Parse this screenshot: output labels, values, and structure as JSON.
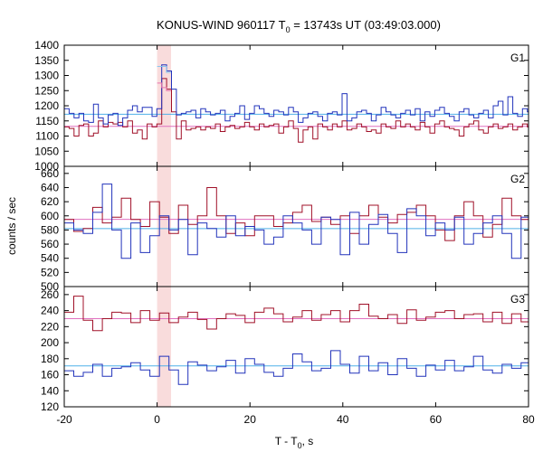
{
  "chart_data": {
    "type": "line",
    "title": {
      "pre": "KONUS-WIND 960117 T",
      "sub": "0",
      "post": " = 13743s UT (03:49:03.000)"
    },
    "xlabel": {
      "pre": "T - T",
      "sub": "0",
      "post": ", s"
    },
    "ylabel": "counts / sec",
    "xlim": [
      -20,
      80
    ],
    "x_ticks": [
      -20,
      0,
      20,
      40,
      60,
      80
    ],
    "x_tick_labels": [
      "-20",
      "0",
      "20",
      "40",
      "60",
      "80"
    ],
    "highlight_interval": [
      0,
      3
    ],
    "colors": {
      "band": "#f9dcdc",
      "lc_blue": "#2233bb",
      "lc_red": "#a01028",
      "bg_blue": "#4fb0e8",
      "bg_red": "#e070c0",
      "blue_hi": "#88c8f0",
      "red_hi": "#e878b0"
    },
    "panels": [
      {
        "name": "G1",
        "ylim": [
          1000,
          1400
        ],
        "yticks": [
          1000,
          1050,
          1100,
          1150,
          1200,
          1250,
          1300,
          1350,
          1400
        ],
        "ytick_labels": [
          "1000",
          "1050",
          "1100",
          "1150",
          "1200",
          "1250",
          "1300",
          "1350",
          "1400"
        ],
        "bin_width": 1.05,
        "red_start": -20,
        "blue_start": -20,
        "red_values": [
          1130,
          1125,
          1100,
          1135,
          1140,
          1100,
          1110,
          1150,
          1130,
          1145,
          1140,
          1145,
          1130,
          1150,
          1110,
          1120,
          1090,
          1140,
          1130,
          1140,
          1290,
          1255,
          1180,
          1090,
          1150,
          1120,
          1125,
          1130,
          1120,
          1130,
          1125,
          1140,
          1115,
          1130,
          1135,
          1125,
          1130,
          1145,
          1130,
          1120,
          1140,
          1130,
          1135,
          1140,
          1110,
          1130,
          1150,
          1125,
          1080,
          1120,
          1130,
          1090,
          1140,
          1130,
          1120,
          1140,
          1130,
          1150,
          1120,
          1125,
          1140,
          1130,
          1115,
          1120,
          1110,
          1140,
          1130,
          1125,
          1150,
          1130,
          1140,
          1130,
          1120,
          1145,
          1130,
          1110,
          1140,
          1150,
          1130,
          1125,
          1120,
          1100,
          1130,
          1140,
          1150,
          1120,
          1110,
          1130,
          1140,
          1125,
          1130,
          1140,
          1120,
          1130,
          1140,
          1130
        ],
        "blue_values": [
          1190,
          1175,
          1160,
          1175,
          1150,
          1145,
          1205,
          1160,
          1140,
          1170,
          1175,
          1135,
          1160,
          1185,
          1200,
          1180,
          1195,
          1195,
          1165,
          1190,
          1335,
          1315,
          1255,
          1170,
          1175,
          1180,
          1185,
          1160,
          1190,
          1180,
          1170,
          1175,
          1185,
          1150,
          1165,
          1175,
          1200,
          1155,
          1175,
          1200,
          1190,
          1175,
          1165,
          1185,
          1180,
          1170,
          1195,
          1180,
          1145,
          1160,
          1175,
          1180,
          1165,
          1150,
          1175,
          1180,
          1170,
          1240,
          1150,
          1160,
          1180,
          1185,
          1175,
          1150,
          1170,
          1195,
          1180,
          1170,
          1160,
          1175,
          1185,
          1170,
          1190,
          1150,
          1180,
          1165,
          1185,
          1195,
          1175,
          1165,
          1150,
          1180,
          1190,
          1170,
          1160,
          1175,
          1185,
          1160,
          1200,
          1215,
          1170,
          1230,
          1175,
          1165,
          1190,
          1180
        ],
        "bg_red": 1132,
        "bg_blue": 1172,
        "highlight_red": [
          1275,
          1260,
          1250
        ],
        "highlight_blue": [
          1330,
          1330,
          1310
        ]
      },
      {
        "name": "G2",
        "ylim": [
          500,
          670
        ],
        "yticks": [
          500,
          520,
          540,
          560,
          580,
          600,
          620,
          640,
          660
        ],
        "ytick_labels": [
          "500",
          "520",
          "540",
          "560",
          "580",
          "600",
          "620",
          "640",
          "660"
        ],
        "bin_width": 2.05,
        "red_start": -20,
        "blue_start": -20,
        "red_values": [
          595,
          578,
          582,
          612,
          590,
          598,
          625,
          595,
          585,
          620,
          598,
          575,
          615,
          588,
          600,
          640,
          600,
          575,
          590,
          572,
          600,
          600,
          585,
          590,
          605,
          615,
          592,
          598,
          588,
          600,
          575,
          600,
          615,
          598,
          590,
          602,
          605,
          615,
          600,
          580,
          565,
          600,
          620,
          600,
          570,
          588,
          625,
          600,
          595,
          615,
          600,
          595,
          610,
          590,
          615,
          600,
          570,
          590,
          610,
          600
        ],
        "blue_values": [
          590,
          580,
          575,
          605,
          645,
          580,
          540,
          590,
          548,
          572,
          600,
          580,
          595,
          545,
          590,
          582,
          570,
          600,
          572,
          585,
          580,
          560,
          570,
          600,
          590,
          580,
          560,
          598,
          595,
          545,
          605,
          560,
          588,
          602,
          575,
          548,
          610,
          600,
          572,
          590,
          580,
          598,
          560,
          575,
          590,
          600,
          575,
          540,
          598,
          580,
          600,
          585,
          560,
          572,
          598,
          580,
          590,
          575,
          600,
          580
        ],
        "bg_red": 595,
        "bg_blue": 582
      },
      {
        "name": "G3",
        "ylim": [
          120,
          270
        ],
        "yticks": [
          120,
          140,
          160,
          180,
          200,
          220,
          240,
          260
        ],
        "ytick_labels": [
          "120",
          "140",
          "160",
          "180",
          "200",
          "220",
          "240",
          "260"
        ],
        "bin_width": 2.05,
        "red_start": -20,
        "blue_start": -20,
        "red_values": [
          238,
          258,
          228,
          215,
          230,
          238,
          237,
          225,
          240,
          228,
          237,
          225,
          232,
          238,
          229,
          217,
          230,
          236,
          234,
          225,
          238,
          243,
          236,
          226,
          232,
          240,
          228,
          235,
          240,
          226,
          240,
          248,
          233,
          230,
          235,
          224,
          241,
          228,
          232,
          238,
          240,
          230,
          235,
          236,
          226,
          238,
          224,
          236,
          226,
          238,
          243,
          235,
          240,
          227,
          246,
          236,
          240,
          232,
          225,
          237
        ],
        "blue_values": [
          165,
          158,
          163,
          173,
          158,
          168,
          170,
          175,
          166,
          158,
          183,
          166,
          148,
          176,
          172,
          165,
          170,
          178,
          162,
          180,
          173,
          163,
          158,
          168,
          186,
          176,
          165,
          168,
          190,
          173,
          162,
          183,
          165,
          175,
          160,
          180,
          168,
          158,
          172,
          166,
          178,
          165,
          170,
          183,
          166,
          162,
          173,
          168,
          175,
          163,
          178,
          168,
          160,
          173,
          166,
          158,
          175,
          162,
          170,
          166
        ],
        "bg_red": 230,
        "bg_blue": 171
      }
    ]
  }
}
